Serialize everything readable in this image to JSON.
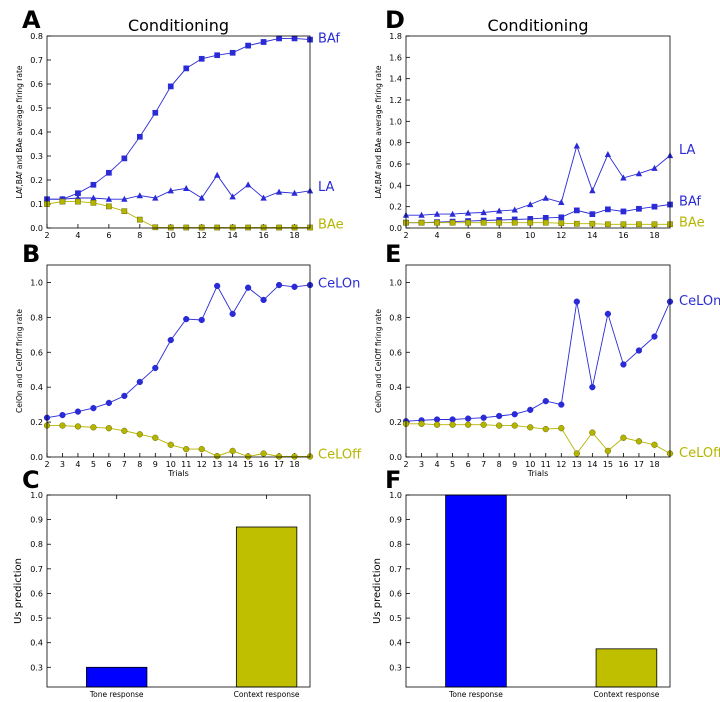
{
  "colors": {
    "blue": "#2a2ad6",
    "olive": "#b5b500",
    "axis": "#000000"
  },
  "chart_data": [
    {
      "panel": "A",
      "type": "line",
      "title": "Conditioning",
      "xlabel": "",
      "ylabel": "LAf,BAf and BAe average firing rate",
      "xlim": [
        2,
        19
      ],
      "ylim": [
        0,
        0.8
      ],
      "xticks": [
        2,
        4,
        6,
        8,
        10,
        12,
        14,
        16,
        18
      ],
      "yticks": [
        0.0,
        0.1,
        0.2,
        0.3,
        0.4,
        0.5,
        0.6,
        0.7,
        0.8
      ],
      "x": [
        2,
        3,
        4,
        5,
        6,
        7,
        8,
        9,
        10,
        11,
        12,
        13,
        14,
        15,
        16,
        17,
        18,
        19
      ],
      "series": [
        {
          "name": "BAf",
          "color": "blue",
          "marker": "square",
          "values": [
            0.12,
            0.12,
            0.145,
            0.18,
            0.23,
            0.29,
            0.38,
            0.48,
            0.59,
            0.665,
            0.705,
            0.72,
            0.73,
            0.76,
            0.775,
            0.79,
            0.79,
            0.785
          ]
        },
        {
          "name": "LA",
          "color": "blue",
          "marker": "triangle",
          "values": [
            0.12,
            0.12,
            0.125,
            0.125,
            0.12,
            0.12,
            0.135,
            0.125,
            0.155,
            0.165,
            0.125,
            0.22,
            0.13,
            0.18,
            0.125,
            0.15,
            0.145,
            0.155
          ]
        },
        {
          "name": "BAe",
          "color": "olive",
          "marker": "square",
          "values": [
            0.1,
            0.11,
            0.11,
            0.105,
            0.09,
            0.07,
            0.035,
            0.003,
            0.002,
            0.002,
            0.002,
            0.002,
            0.002,
            0.002,
            0.002,
            0.002,
            0.002,
            0.002
          ]
        }
      ]
    },
    {
      "panel": "D",
      "type": "line",
      "title": "Conditioning",
      "xlabel": "",
      "ylabel": "LAf,BAf and BAe average firing rate",
      "xlim": [
        2,
        19
      ],
      "ylim": [
        0,
        1.8
      ],
      "xticks": [
        2,
        4,
        6,
        8,
        10,
        12,
        14,
        16,
        18
      ],
      "yticks": [
        0.0,
        0.2,
        0.4,
        0.6,
        0.8,
        1.0,
        1.2,
        1.4,
        1.6,
        1.8
      ],
      "x": [
        2,
        3,
        4,
        5,
        6,
        7,
        8,
        9,
        10,
        11,
        12,
        13,
        14,
        15,
        16,
        17,
        18,
        19
      ],
      "series": [
        {
          "name": "LA",
          "color": "blue",
          "marker": "triangle",
          "values": [
            0.12,
            0.12,
            0.13,
            0.13,
            0.14,
            0.145,
            0.16,
            0.17,
            0.22,
            0.28,
            0.24,
            0.77,
            0.35,
            0.69,
            0.47,
            0.51,
            0.56,
            0.68
          ]
        },
        {
          "name": "BAf",
          "color": "blue",
          "marker": "square",
          "values": [
            0.05,
            0.05,
            0.055,
            0.06,
            0.065,
            0.07,
            0.075,
            0.08,
            0.085,
            0.095,
            0.1,
            0.165,
            0.13,
            0.175,
            0.155,
            0.18,
            0.2,
            0.22
          ]
        },
        {
          "name": "BAe",
          "color": "olive",
          "marker": "square",
          "values": [
            0.05,
            0.05,
            0.05,
            0.05,
            0.05,
            0.05,
            0.05,
            0.05,
            0.05,
            0.05,
            0.045,
            0.04,
            0.04,
            0.035,
            0.035,
            0.035,
            0.035,
            0.035
          ]
        }
      ]
    },
    {
      "panel": "B",
      "type": "line",
      "title": "",
      "xlabel": "Trials",
      "ylabel": "CelOn and CelOff firing rate",
      "xlim": [
        2,
        19
      ],
      "ylim": [
        0,
        1.1
      ],
      "xticks": [
        2,
        3,
        4,
        5,
        6,
        7,
        8,
        9,
        10,
        11,
        12,
        13,
        14,
        15,
        16,
        17,
        18
      ],
      "yticks": [
        0.0,
        0.2,
        0.4,
        0.6,
        0.8,
        1.0
      ],
      "x": [
        2,
        3,
        4,
        5,
        6,
        7,
        8,
        9,
        10,
        11,
        12,
        13,
        14,
        15,
        16,
        17,
        18,
        19
      ],
      "series": [
        {
          "name": "CeLOn",
          "color": "blue",
          "marker": "circle",
          "values": [
            0.225,
            0.24,
            0.26,
            0.28,
            0.31,
            0.35,
            0.43,
            0.51,
            0.67,
            0.79,
            0.785,
            0.98,
            0.82,
            0.97,
            0.9,
            0.985,
            0.975,
            0.985
          ]
        },
        {
          "name": "CeLOff",
          "color": "olive",
          "marker": "circle",
          "values": [
            0.18,
            0.18,
            0.175,
            0.17,
            0.165,
            0.15,
            0.13,
            0.11,
            0.07,
            0.045,
            0.045,
            0.005,
            0.035,
            0.003,
            0.02,
            0.003,
            0.003,
            0.003
          ]
        }
      ]
    },
    {
      "panel": "E",
      "type": "line",
      "title": "",
      "xlabel": "Trials",
      "ylabel": "CelOn and CelOff firing rate",
      "xlim": [
        2,
        19
      ],
      "ylim": [
        0,
        1.1
      ],
      "xticks": [
        2,
        3,
        4,
        5,
        6,
        7,
        8,
        9,
        10,
        11,
        12,
        13,
        14,
        15,
        16,
        17,
        18
      ],
      "yticks": [
        0.0,
        0.2,
        0.4,
        0.6,
        0.8,
        1.0
      ],
      "x": [
        2,
        3,
        4,
        5,
        6,
        7,
        8,
        9,
        10,
        11,
        12,
        13,
        14,
        15,
        16,
        17,
        18,
        19
      ],
      "series": [
        {
          "name": "CeLOn",
          "color": "blue",
          "marker": "circle",
          "values": [
            0.205,
            0.21,
            0.215,
            0.215,
            0.22,
            0.225,
            0.235,
            0.245,
            0.27,
            0.32,
            0.3,
            0.89,
            0.4,
            0.82,
            0.53,
            0.61,
            0.69,
            0.89
          ]
        },
        {
          "name": "CeLOff",
          "color": "olive",
          "marker": "circle",
          "values": [
            0.19,
            0.19,
            0.185,
            0.185,
            0.185,
            0.185,
            0.18,
            0.18,
            0.17,
            0.16,
            0.165,
            0.02,
            0.14,
            0.035,
            0.11,
            0.09,
            0.07,
            0.02
          ]
        }
      ]
    },
    {
      "panel": "C",
      "type": "bar",
      "title": "",
      "xlabel": "",
      "ylabel": "Us prediction",
      "ylim": [
        0.22,
        1.0
      ],
      "yticks": [
        0.3,
        0.4,
        0.5,
        0.6,
        0.7,
        0.8,
        0.9,
        1.0
      ],
      "categories": [
        "Tone response",
        "Context response"
      ],
      "values": [
        0.3,
        0.87
      ],
      "bar_colors": [
        "#0000ff",
        "#bfbf00"
      ]
    },
    {
      "panel": "F",
      "type": "bar",
      "title": "",
      "xlabel": "",
      "ylabel": "Us prediction",
      "ylim": [
        0.22,
        1.0
      ],
      "yticks": [
        0.3,
        0.4,
        0.5,
        0.6,
        0.7,
        0.8,
        0.9,
        1.0
      ],
      "categories": [
        "Tone response",
        "Context response"
      ],
      "values": [
        1.0,
        0.375
      ],
      "bar_colors": [
        "#0000ff",
        "#bfbf00"
      ]
    }
  ]
}
